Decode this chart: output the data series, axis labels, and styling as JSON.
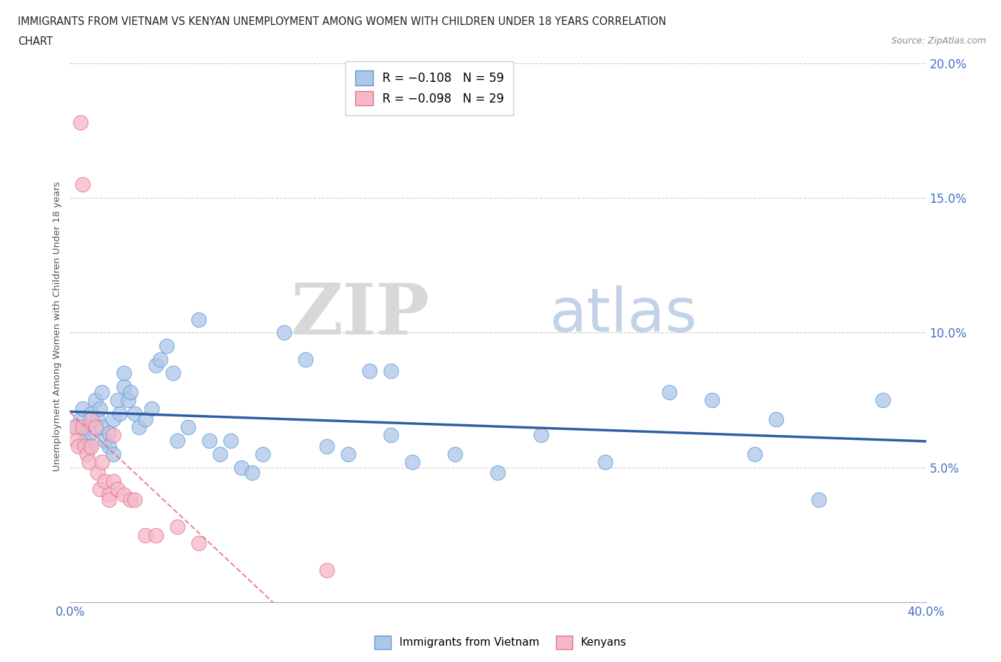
{
  "title_line1": "IMMIGRANTS FROM VIETNAM VS KENYAN UNEMPLOYMENT AMONG WOMEN WITH CHILDREN UNDER 18 YEARS CORRELATION",
  "title_line2": "CHART",
  "source": "Source: ZipAtlas.com",
  "ylabel_label": "Unemployment Among Women with Children Under 18 years",
  "xmin": 0.0,
  "xmax": 0.4,
  "ymin": 0.0,
  "ymax": 0.205,
  "yticks": [
    0.0,
    0.05,
    0.1,
    0.15,
    0.2
  ],
  "ytick_labels": [
    "",
    "5.0%",
    "10.0%",
    "15.0%",
    "20.0%"
  ],
  "xticks": [
    0.0,
    0.05,
    0.1,
    0.15,
    0.2,
    0.25,
    0.3,
    0.35,
    0.4
  ],
  "xtick_labels": [
    "0.0%",
    "",
    "",
    "",
    "",
    "",
    "",
    "",
    "40.0%"
  ],
  "legend_r1": "R = −0.108   N = 59",
  "legend_r2": "R = −0.098   N = 29",
  "color_blue_fill": "#aec6e8",
  "color_pink_fill": "#f5b8c8",
  "color_blue_edge": "#5b9bd5",
  "color_pink_edge": "#e8708a",
  "color_blue_line": "#2e5fa3",
  "color_pink_line": "#e8708a",
  "vietnam_x": [
    0.003,
    0.005,
    0.006,
    0.007,
    0.008,
    0.009,
    0.01,
    0.01,
    0.012,
    0.013,
    0.014,
    0.015,
    0.015,
    0.016,
    0.018,
    0.018,
    0.02,
    0.02,
    0.022,
    0.023,
    0.025,
    0.025,
    0.027,
    0.028,
    0.03,
    0.032,
    0.035,
    0.038,
    0.04,
    0.042,
    0.045,
    0.048,
    0.05,
    0.055,
    0.06,
    0.065,
    0.07,
    0.075,
    0.08,
    0.085,
    0.09,
    0.1,
    0.11,
    0.12,
    0.13,
    0.14,
    0.15,
    0.16,
    0.18,
    0.2,
    0.22,
    0.25,
    0.28,
    0.3,
    0.32,
    0.33,
    0.35,
    0.38,
    0.15
  ],
  "vietnam_y": [
    0.065,
    0.068,
    0.072,
    0.06,
    0.065,
    0.058,
    0.07,
    0.063,
    0.075,
    0.068,
    0.072,
    0.078,
    0.065,
    0.06,
    0.058,
    0.063,
    0.068,
    0.055,
    0.075,
    0.07,
    0.08,
    0.085,
    0.075,
    0.078,
    0.07,
    0.065,
    0.068,
    0.072,
    0.088,
    0.09,
    0.095,
    0.085,
    0.06,
    0.065,
    0.105,
    0.06,
    0.055,
    0.06,
    0.05,
    0.048,
    0.055,
    0.1,
    0.09,
    0.058,
    0.055,
    0.086,
    0.062,
    0.052,
    0.055,
    0.048,
    0.062,
    0.052,
    0.078,
    0.075,
    0.055,
    0.068,
    0.038,
    0.075,
    0.086
  ],
  "kenya_x": [
    0.002,
    0.003,
    0.004,
    0.005,
    0.006,
    0.006,
    0.007,
    0.008,
    0.009,
    0.01,
    0.01,
    0.012,
    0.013,
    0.014,
    0.015,
    0.016,
    0.018,
    0.018,
    0.02,
    0.02,
    0.022,
    0.025,
    0.028,
    0.03,
    0.035,
    0.04,
    0.05,
    0.06,
    0.12
  ],
  "kenya_y": [
    0.065,
    0.06,
    0.058,
    0.178,
    0.155,
    0.065,
    0.058,
    0.055,
    0.052,
    0.068,
    0.058,
    0.065,
    0.048,
    0.042,
    0.052,
    0.045,
    0.04,
    0.038,
    0.062,
    0.045,
    0.042,
    0.04,
    0.038,
    0.038,
    0.025,
    0.025,
    0.028,
    0.022,
    0.012
  ]
}
